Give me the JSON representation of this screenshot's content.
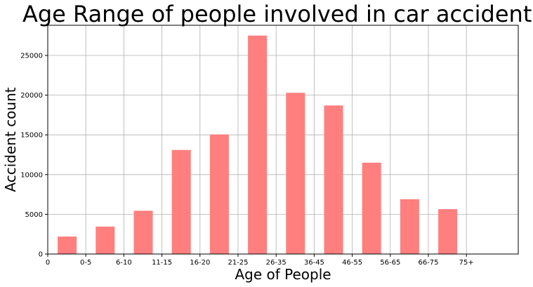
{
  "chart_data": {
    "type": "bar",
    "title": "Age Range of people involved in car accidents",
    "xlabel": "Age of People",
    "ylabel": "Accident count",
    "x_tick_labels": [
      "0",
      "0-5",
      "6-10",
      "11-15",
      "16-20",
      "21-25",
      "26-35",
      "36-45",
      "46-55",
      "56-65",
      "66-75",
      "75+"
    ],
    "y_ticks": [
      0,
      5000,
      10000,
      15000,
      20000,
      25000
    ],
    "ylim": [
      0,
      28800
    ],
    "grid": true,
    "bar_color": "#ff7f7f",
    "values": [
      2200,
      3450,
      5450,
      13100,
      15050,
      27500,
      20300,
      18700,
      11500,
      6900,
      5650
    ]
  }
}
